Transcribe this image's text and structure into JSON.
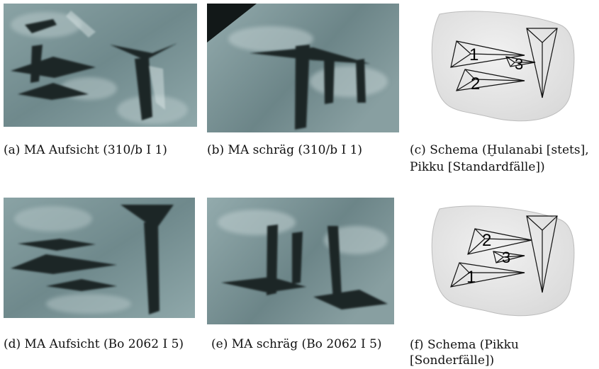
{
  "figure": {
    "panels": [
      {
        "id": "a",
        "caption": "(a)  MA Aufsicht (310/b I 1)"
      },
      {
        "id": "b",
        "caption": "(b)  MA schräg (310/b I 1)"
      },
      {
        "id": "c",
        "caption_lines": [
          "(c)  Schema (Ḫulanabi [stets],",
          "Pikku [Standardfälle])"
        ],
        "wedge_labels": [
          "1",
          "2",
          "3"
        ]
      },
      {
        "id": "d",
        "caption": "(d)  MA Aufsicht (Bo 2062 I 5)"
      },
      {
        "id": "e",
        "caption": "(e)  MA schräg (Bo 2062 I 5)"
      },
      {
        "id": "f",
        "caption_lines": [
          "(f)  Schema (Pikku",
          "[Sonderfälle])"
        ],
        "wedge_labels": [
          "2",
          "3",
          "1"
        ]
      }
    ]
  },
  "colors": {
    "tablet_surface": "#7c9699",
    "wedge_shadow": "#1c2526",
    "schema_blob": "#e4e4e4"
  }
}
